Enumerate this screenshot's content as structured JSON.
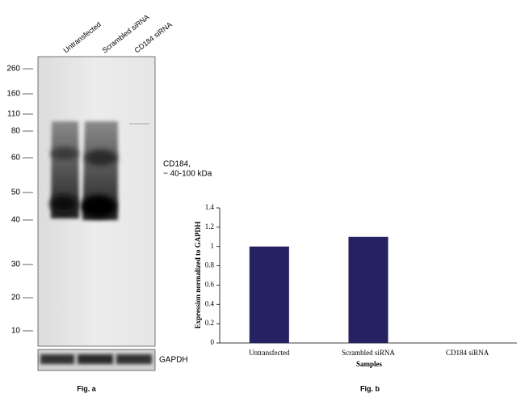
{
  "blot": {
    "lanes": [
      "Untransfected",
      "Scrambled siRNA",
      "CD184 siRNA"
    ],
    "markers": [
      260,
      160,
      110,
      80,
      60,
      50,
      40,
      30,
      20,
      10
    ],
    "band_label": [
      "CD184,",
      "~ 40-100 kDa"
    ],
    "loading_control": "GAPDH",
    "caption": "Fig. a"
  },
  "chart_data": {
    "type": "bar",
    "caption": "Fig. b",
    "x_label": "Samples",
    "y_label": "Expression normalized to GAPDH",
    "categories": [
      "Untransfected",
      "Scrambled siRNA",
      "CD184 siRNA"
    ],
    "values": [
      1,
      1.1,
      0
    ],
    "color": "#262262",
    "ylim": [
      0,
      1.4
    ],
    "yticks": [
      0,
      0.2,
      0.4,
      0.6,
      0.8,
      1,
      1.2,
      1.4
    ],
    "grid": false
  }
}
